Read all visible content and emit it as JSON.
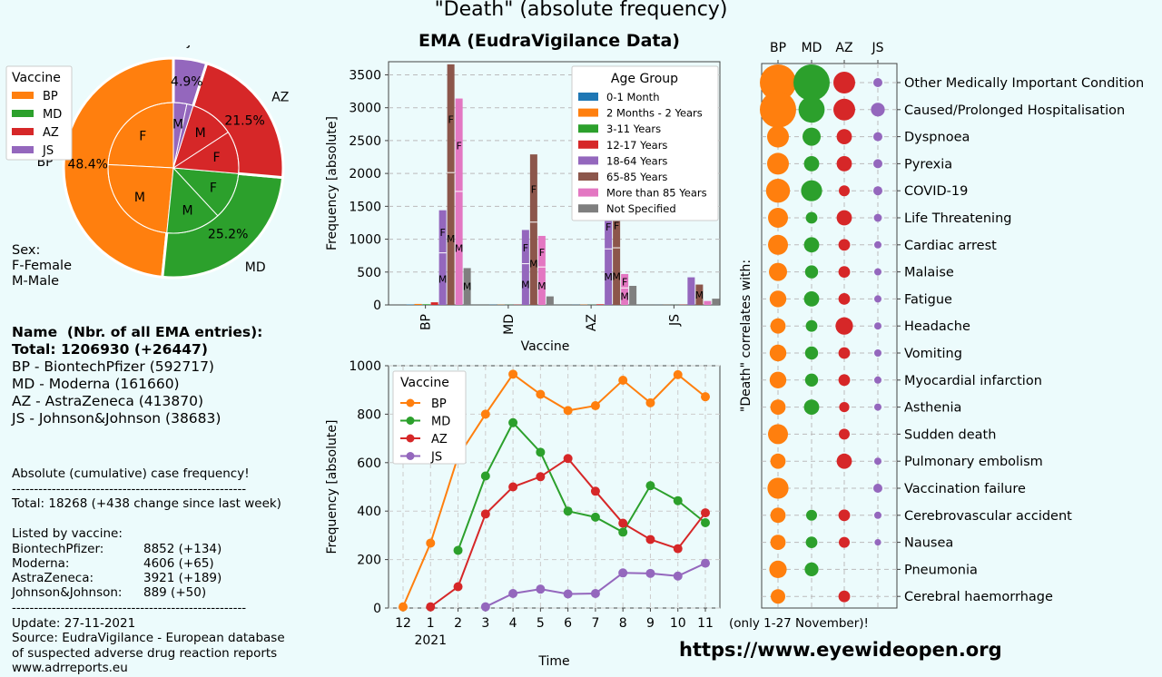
{
  "header": {
    "title": "\"Death\" (absolute frequency)",
    "subtitle": "EMA (EudraVigilance Data)"
  },
  "pie_panel": {
    "legend_title": "Vaccine",
    "sex_note": "Sex:\nF-Female\nM-Male"
  },
  "info": {
    "name_heading": "Name  (Nbr. of all EMA entries):",
    "total": "Total: 1206930 (+26447)",
    "entries": [
      "BP - BiontechPfizer (592717)",
      "MD - Moderna (161660)",
      "AZ - AstraZeneca (413870)",
      "JS - Johnson&Johnson (38683)"
    ]
  },
  "stats": {
    "heading": "Absolute (cumulative) case frequency!",
    "divider": "-----------------------------------------------------",
    "total_line": "Total: 18268 (+438 change since last week)",
    "listed_heading": "Listed by vaccine:",
    "rows": [
      {
        "name": "BiontechPfizer:",
        "value": "8852 (+134)"
      },
      {
        "name": "Moderna:",
        "value": "4606 (+65)"
      },
      {
        "name": "AstraZeneca:",
        "value": "3921 (+189)"
      },
      {
        "name": "Johnson&Johnson:",
        "value": "889 (+50)"
      }
    ],
    "update": "Update: 27-11-2021",
    "source": "Source: EudraVigilance - European database\nof suspected adverse drug reaction reports\nwww.adrreports.eu"
  },
  "footer": {
    "url": "https://www.eyewideopen.org",
    "note": "(only 1-27 November)!"
  },
  "colors": {
    "BP": "#ff7f0e",
    "MD": "#2ca02c",
    "AZ": "#d62728",
    "JS": "#9467bd",
    "background": "#ecfbfc"
  },
  "chart_data": [
    {
      "type": "pie",
      "legend_title": "Vaccine",
      "outer": [
        {
          "name": "BP",
          "value": 48.4,
          "label": "48.4%"
        },
        {
          "name": "MD",
          "value": 25.2,
          "label": "25.2%"
        },
        {
          "name": "AZ",
          "value": 21.5,
          "label": "21.5%"
        },
        {
          "name": "JS",
          "value": 4.9,
          "label": "4.9%"
        }
      ],
      "outer_labels": [
        "BP",
        "MD",
        "AZ",
        "JS"
      ],
      "inner": [
        {
          "vaccine": "BP",
          "sex": "F",
          "value": 24.2
        },
        {
          "vaccine": "BP",
          "sex": "M",
          "value": 24.2
        },
        {
          "vaccine": "MD",
          "sex": "M",
          "value": 13.5
        },
        {
          "vaccine": "MD",
          "sex": "F",
          "value": 11.7
        },
        {
          "vaccine": "AZ",
          "sex": "F",
          "value": 10.6
        },
        {
          "vaccine": "AZ",
          "sex": "M",
          "value": 10.9
        },
        {
          "vaccine": "JS",
          "sex": "F",
          "value": 1.6
        },
        {
          "vaccine": "JS",
          "sex": "M",
          "value": 3.3
        }
      ]
    },
    {
      "type": "bar",
      "xlabel": "Vaccine",
      "ylabel": "Frequency [absolute]",
      "categories": [
        "BP",
        "MD",
        "AZ",
        "JS"
      ],
      "ylim": [
        0,
        3700
      ],
      "yticks": [
        0,
        500,
        1000,
        1500,
        2000,
        2500,
        3000,
        3500
      ],
      "legend_title": "Age Group",
      "series": [
        {
          "name": "0-1 Month",
          "color": "#1f77b4",
          "values": [
            5,
            3,
            2,
            1
          ]
        },
        {
          "name": "2 Months - 2 Years",
          "color": "#ff7f0e",
          "values": [
            15,
            3,
            4,
            1
          ]
        },
        {
          "name": "3-11 Years",
          "color": "#2ca02c",
          "values": [
            10,
            2,
            2,
            1
          ]
        },
        {
          "name": "12-17 Years",
          "color": "#d62728",
          "values": [
            40,
            4,
            10,
            4
          ]
        },
        {
          "name": "18-64 Years",
          "color": "#9467bd",
          "values": [
            1440,
            1140,
            1550,
            420
          ]
        },
        {
          "name": "65-85 Years",
          "color": "#8c564b",
          "values": [
            3660,
            2290,
            1580,
            310
          ]
        },
        {
          "name": "More than 85 Years",
          "color": "#e377c2",
          "values": [
            3140,
            1050,
            470,
            60
          ]
        },
        {
          "name": "Not Specified",
          "color": "#7f7f7f",
          "values": [
            560,
            130,
            290,
            95
          ]
        }
      ],
      "sex_split_labels": [
        {
          "category": "BP",
          "series": "18-64 Years",
          "labels": [
            "F",
            "M"
          ]
        },
        {
          "category": "BP",
          "series": "65-85 Years",
          "labels": [
            "F",
            "M"
          ]
        },
        {
          "category": "BP",
          "series": "More than 85 Years",
          "labels": [
            "F",
            "M"
          ]
        },
        {
          "category": "BP",
          "series": "Not Specified",
          "labels": [
            "M"
          ]
        },
        {
          "category": "MD",
          "series": "18-64 Years",
          "labels": [
            "F",
            "M"
          ]
        },
        {
          "category": "MD",
          "series": "65-85 Years",
          "labels": [
            "F",
            "M"
          ]
        },
        {
          "category": "MD",
          "series": "More than 85 Years",
          "labels": [
            "F",
            "M"
          ]
        },
        {
          "category": "AZ",
          "series": "18-64 Years",
          "labels": [
            "F",
            "M"
          ]
        },
        {
          "category": "AZ",
          "series": "65-85 Years",
          "labels": [
            "F",
            "M"
          ]
        },
        {
          "category": "AZ",
          "series": "More than 85 Years",
          "labels": [
            "F",
            "M"
          ]
        },
        {
          "category": "JS",
          "series": "65-85 Years",
          "labels": [
            "M"
          ]
        }
      ]
    },
    {
      "type": "line",
      "xlabel": "Time",
      "ylabel": "Frequency [absolute]",
      "x": [
        "12",
        "1",
        "2",
        "3",
        "4",
        "5",
        "6",
        "7",
        "8",
        "9",
        "10",
        "11"
      ],
      "year_label": "2021",
      "ylim": [
        0,
        1000
      ],
      "yticks": [
        0,
        200,
        400,
        600,
        800,
        1000
      ],
      "legend_title": "Vaccine",
      "series": [
        {
          "name": "BP",
          "values": [
            5,
            268,
            625,
            800,
            965,
            882,
            815,
            835,
            940,
            847,
            963,
            872
          ]
        },
        {
          "name": "MD",
          "values": [
            null,
            null,
            238,
            545,
            765,
            643,
            400,
            375,
            313,
            505,
            443,
            352
          ]
        },
        {
          "name": "AZ",
          "values": [
            null,
            5,
            88,
            388,
            500,
            542,
            617,
            482,
            350,
            283,
            245,
            393
          ]
        },
        {
          "name": "JS",
          "values": [
            null,
            null,
            null,
            5,
            60,
            78,
            58,
            60,
            145,
            143,
            132,
            185
          ]
        }
      ]
    },
    {
      "type": "scatter",
      "ylabel": "\"Death\" correlates with:",
      "columns": [
        "BP",
        "MD",
        "AZ",
        "JS"
      ],
      "rows": [
        "Other Medically Important Condition",
        "Caused/Prolonged Hospitalisation",
        "Dyspnoea",
        "Pyrexia",
        "COVID-19",
        "Life Threatening",
        "Cardiac arrest",
        "Malaise",
        "Fatigue",
        "Headache",
        "Vomiting",
        "Myocardial infarction",
        "Asthenia",
        "Sudden death",
        "Pulmonary embolism",
        "Vaccination failure",
        "Cerebrovascular accident",
        "Nausea",
        "Pneumonia",
        "Cerebral haemorrhage"
      ],
      "sizes": [
        [
          1.0,
          1.0,
          0.6,
          0.25
        ],
        [
          1.0,
          0.72,
          0.6,
          0.38
        ],
        [
          0.6,
          0.5,
          0.42,
          0.25
        ],
        [
          0.6,
          0.42,
          0.42,
          0.25
        ],
        [
          0.66,
          0.58,
          0.3,
          0.25
        ],
        [
          0.55,
          0.32,
          0.42,
          0.22
        ],
        [
          0.55,
          0.42,
          0.32,
          0.2
        ],
        [
          0.5,
          0.36,
          0.32,
          0.2
        ],
        [
          0.46,
          0.42,
          0.32,
          0.2
        ],
        [
          0.42,
          0.32,
          0.48,
          0.2
        ],
        [
          0.46,
          0.36,
          0.32,
          0.2
        ],
        [
          0.46,
          0.36,
          0.32,
          0.2
        ],
        [
          0.42,
          0.42,
          0.28,
          0.2
        ],
        [
          0.55,
          0,
          0.3,
          0
        ],
        [
          0.42,
          0,
          0.42,
          0.2
        ],
        [
          0.58,
          0,
          0,
          0.25
        ],
        [
          0.42,
          0.3,
          0.32,
          0.2
        ],
        [
          0.42,
          0.32,
          0.3,
          0.18
        ],
        [
          0.48,
          0.38,
          0,
          0
        ],
        [
          0.4,
          0,
          0.32,
          0
        ]
      ]
    }
  ]
}
